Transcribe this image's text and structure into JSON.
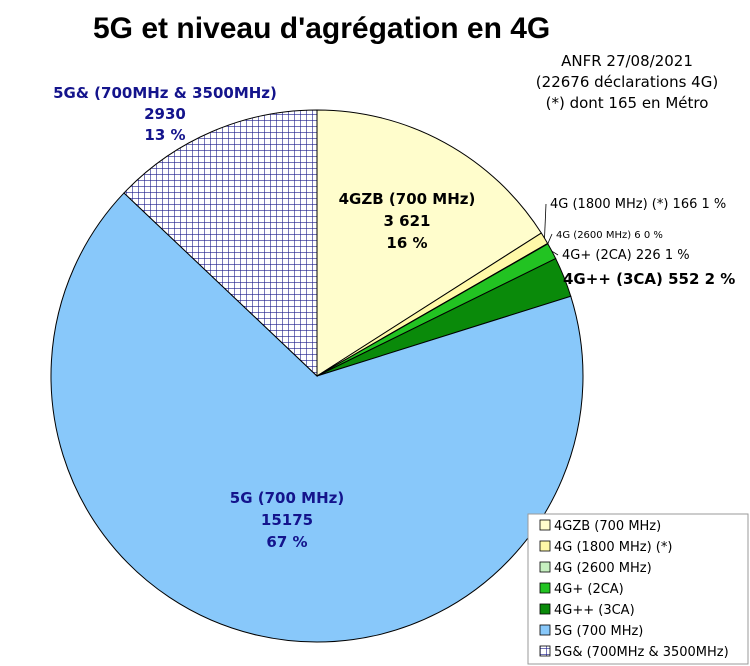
{
  "chart_data": {
    "type": "pie",
    "title": "5G et niveau d'agrégation en 4G",
    "annotation_lines": [
      "ANFR 27/08/2021",
      "(22676 déclarations 4G)",
      "(*) dont 165 en Métro"
    ],
    "legend_placement": "bottom-right",
    "slices": [
      {
        "name": "4GZB (700 MHz)",
        "value": 3621,
        "color": "#fffdcc",
        "pattern": "none",
        "label_lines": [
          "4GZB (700 MHz)",
          "3 621",
          "16 %"
        ]
      },
      {
        "name": "4G (1800 MHz) (*)",
        "value": 166,
        "color": "#fff9a8",
        "pattern": "none",
        "label_lines": [
          "4G (1800 MHz) (*) 166 1 %"
        ]
      },
      {
        "name": "4G (2600 MHz)",
        "value": 6,
        "color": "#c6f0c0",
        "pattern": "none",
        "label_lines": [
          "4G (2600 MHz) 6 0 %"
        ]
      },
      {
        "name": "4G+ (2CA)",
        "value": 226,
        "color": "#22c322",
        "pattern": "none",
        "label_lines": [
          "4G+ (2CA) 226 1 %"
        ]
      },
      {
        "name": "4G++ (3CA)",
        "value": 552,
        "color": "#0a8a0a",
        "pattern": "none",
        "label_lines": [
          "4G++ (3CA) 552 2 %"
        ]
      },
      {
        "name": "5G (700 MHz)",
        "value": 15175,
        "color": "#88c8fa",
        "pattern": "none",
        "label_lines": [
          "5G (700 MHz)",
          "15175",
          "67 %"
        ]
      },
      {
        "name": "5G& (700MHz & 3500MHz)",
        "value": 2930,
        "color": "#1e1e8c",
        "pattern": "grid",
        "label_lines": [
          "5G& (700MHz & 3500MHz)",
          "2930",
          "13 %"
        ]
      }
    ],
    "legend_items": [
      "4GZB (700 MHz)",
      "4G (1800 MHz) (*)",
      "4G (2600 MHz)",
      "4G+ (2CA)",
      "4G++ (3CA)",
      "5G (700 MHz)",
      "5G& (700MHz & 3500MHz)"
    ],
    "label_color": "#14148c"
  }
}
